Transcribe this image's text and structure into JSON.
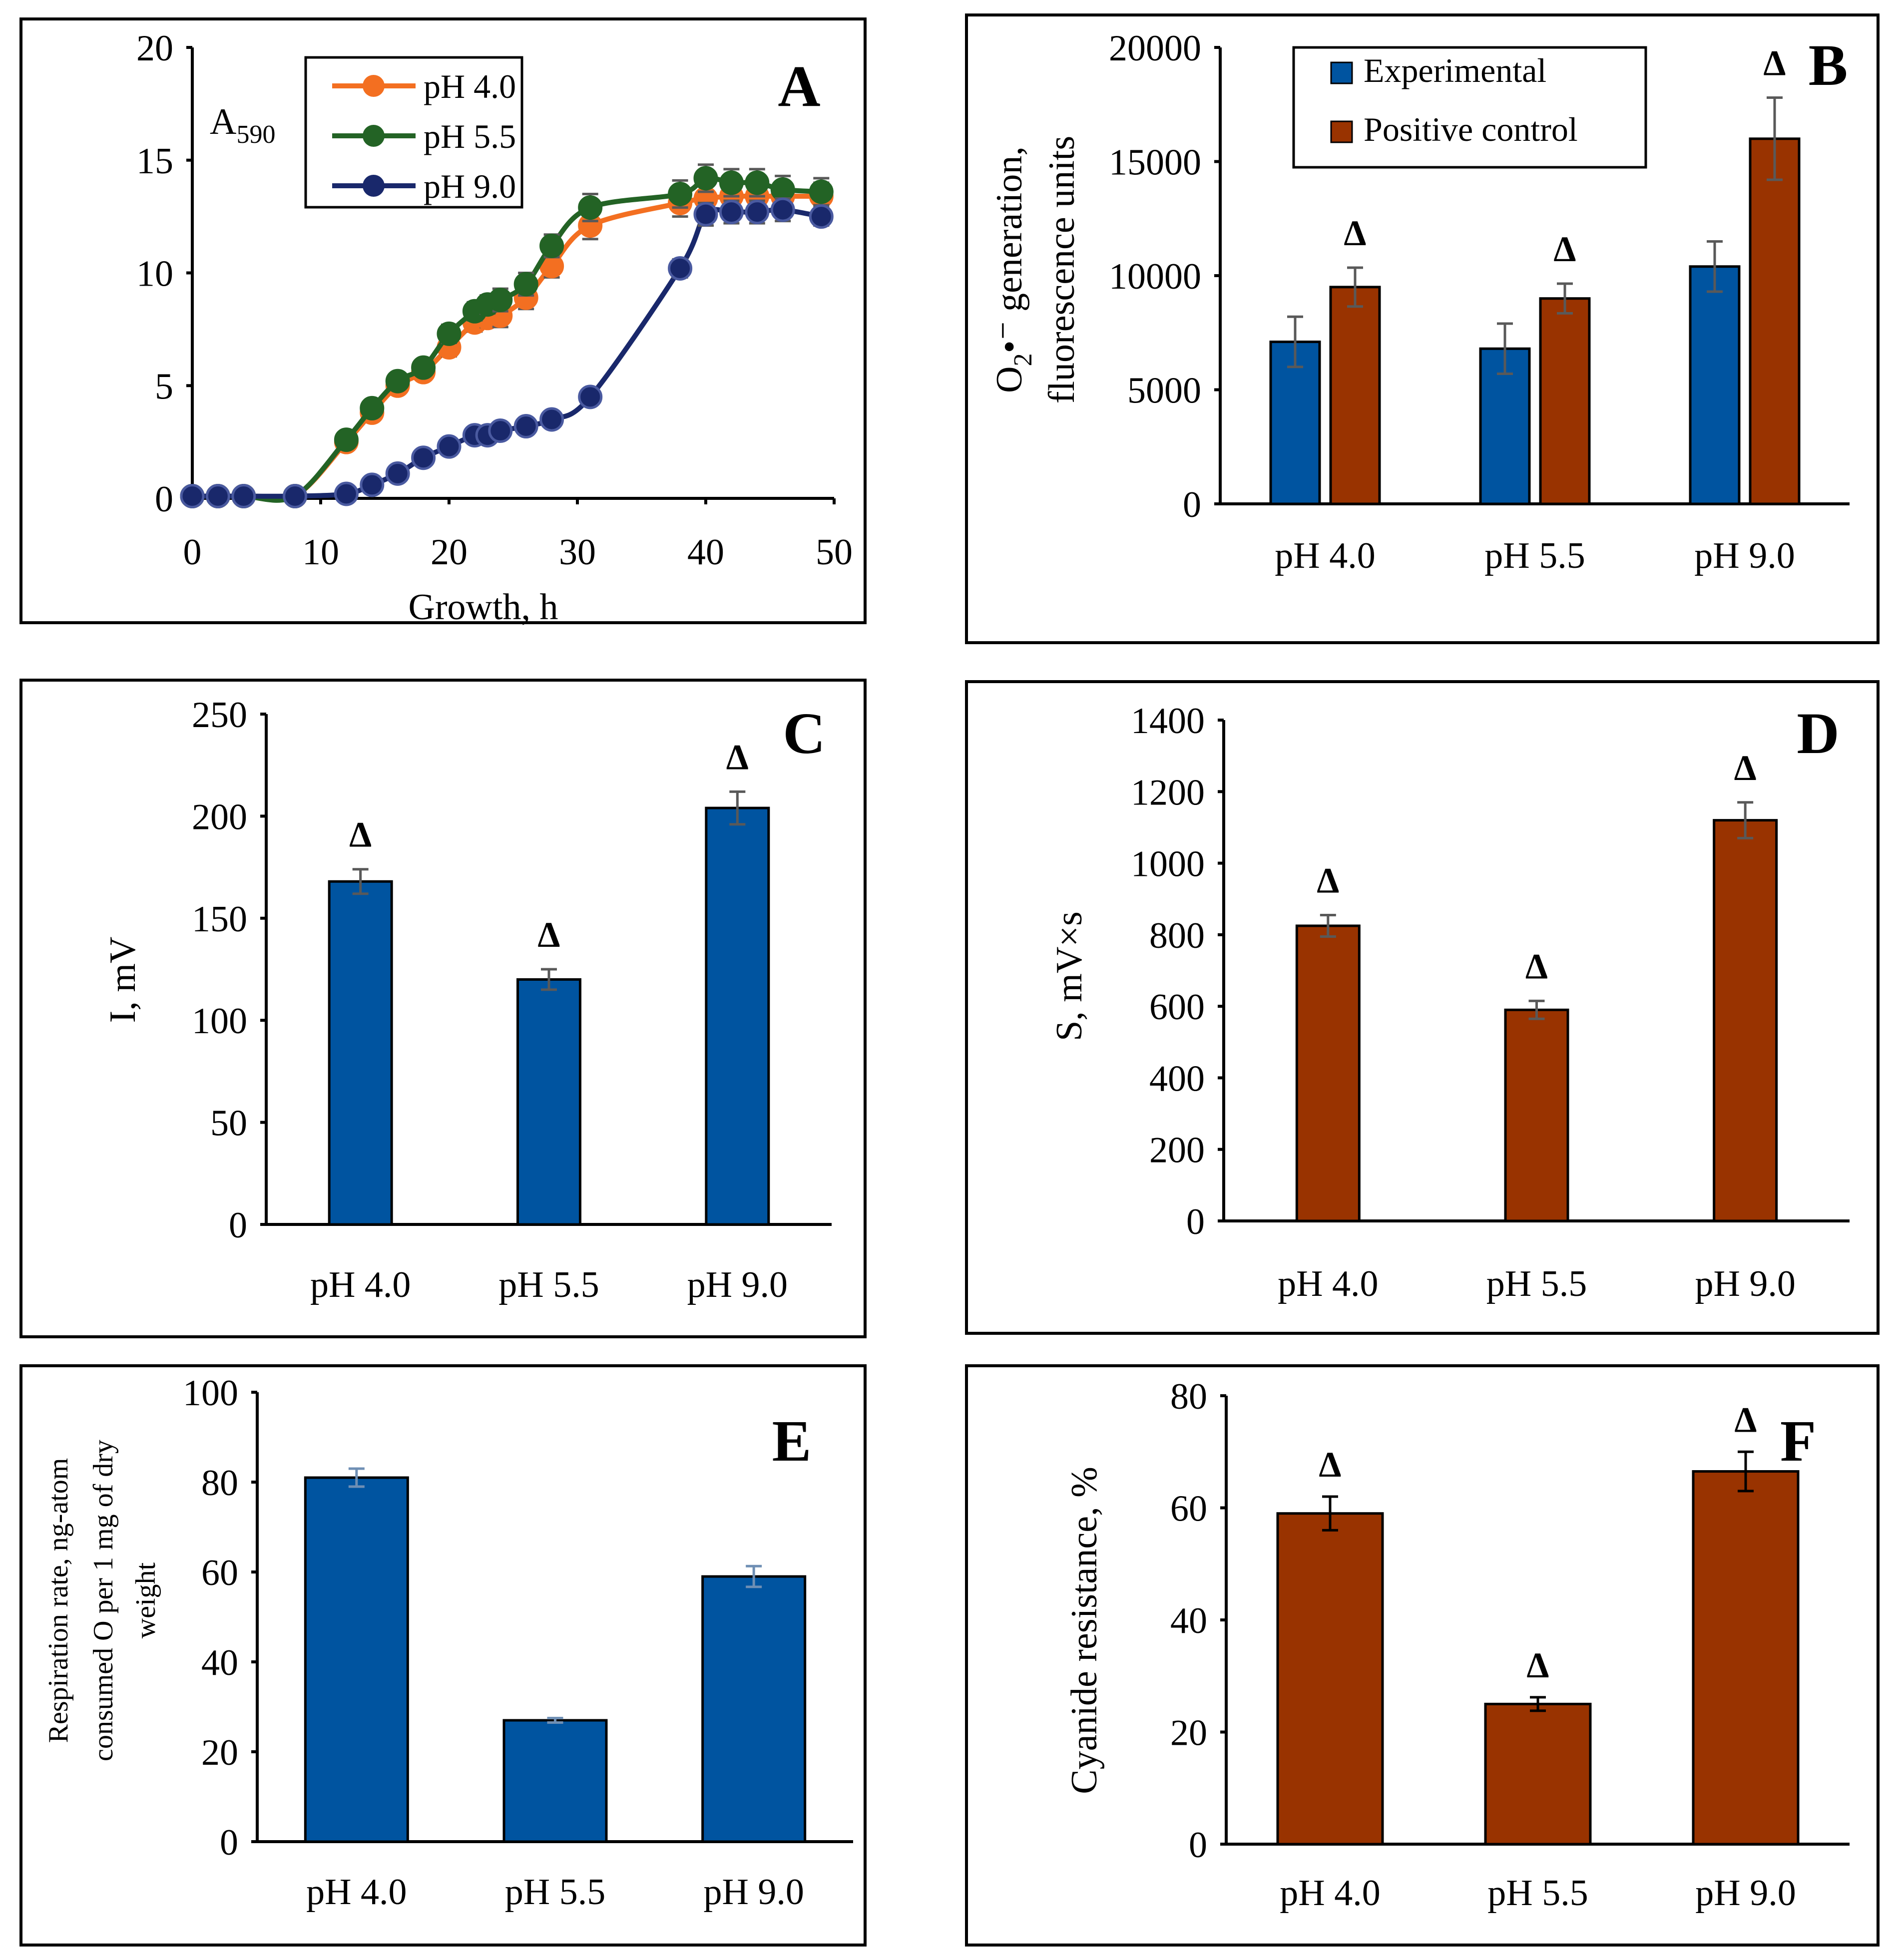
{
  "figure": {
    "colors": {
      "blue": "#0054A0",
      "brown": "#993300",
      "orange": "#F36F21",
      "green": "#236325",
      "navy": "#19286B",
      "err_gray": "#595959",
      "err_black": "#000000",
      "err_lightblue": "#6F8FB4"
    }
  },
  "chart_data": [
    {
      "panel": "A",
      "type": "line",
      "title": "",
      "xlabel": "Growth, h",
      "ylabel_base": "A",
      "ylabel_sub": "590",
      "xlim": [
        0,
        50
      ],
      "ylim": [
        0,
        20
      ],
      "xticks": [
        "0",
        "10",
        "20",
        "30",
        "40",
        "50"
      ],
      "yticks": [
        "0",
        "5",
        "10",
        "15",
        "20"
      ],
      "legend_position": "top-left",
      "series": [
        {
          "name": "pH 4.0",
          "color": "#F36F21",
          "x": [
            0,
            2,
            4,
            8,
            12,
            14,
            16,
            18,
            20,
            22,
            23,
            24,
            26,
            28,
            31,
            38,
            40,
            42,
            44,
            46,
            49
          ],
          "y": [
            0.1,
            0.1,
            0.1,
            0.1,
            2.5,
            3.8,
            5.0,
            5.6,
            6.7,
            7.8,
            8.0,
            8.1,
            8.9,
            10.3,
            12.1,
            13.1,
            13.3,
            13.4,
            13.4,
            13.4,
            13.4
          ],
          "err": [
            0,
            0,
            0,
            0,
            0.3,
            0.3,
            0.3,
            0.3,
            0.4,
            0.4,
            0.4,
            0.5,
            0.5,
            0.5,
            0.6,
            0.6,
            0.6,
            0.6,
            0.6,
            0.6,
            0.6
          ]
        },
        {
          "name": "pH 5.5",
          "color": "#236325",
          "x": [
            0,
            2,
            4,
            8,
            12,
            14,
            16,
            18,
            20,
            22,
            23,
            24,
            26,
            28,
            31,
            38,
            40,
            42,
            44,
            46,
            49
          ],
          "y": [
            0.1,
            0.1,
            0.1,
            0.1,
            2.6,
            4.0,
            5.2,
            5.8,
            7.3,
            8.3,
            8.6,
            8.8,
            9.5,
            11.2,
            12.9,
            13.5,
            14.2,
            14.0,
            14.0,
            13.7,
            13.6
          ],
          "err": [
            0,
            0,
            0,
            0,
            0.3,
            0.3,
            0.3,
            0.3,
            0.4,
            0.4,
            0.4,
            0.5,
            0.5,
            0.5,
            0.6,
            0.6,
            0.6,
            0.6,
            0.6,
            0.6,
            0.6
          ]
        },
        {
          "name": "pH 9.0",
          "color": "#19286B",
          "x": [
            0,
            2,
            4,
            8,
            12,
            14,
            16,
            18,
            20,
            22,
            23,
            24,
            26,
            28,
            31,
            38,
            40,
            42,
            44,
            46,
            49
          ],
          "y": [
            0.1,
            0.1,
            0.1,
            0.1,
            0.2,
            0.6,
            1.1,
            1.8,
            2.3,
            2.8,
            2.8,
            3.0,
            3.2,
            3.5,
            4.5,
            10.2,
            12.6,
            12.7,
            12.7,
            12.8,
            12.5
          ],
          "err": [
            0,
            0,
            0,
            0,
            0,
            0,
            0,
            0,
            0,
            0,
            0,
            0,
            0,
            0,
            0,
            0.4,
            0.5,
            0.5,
            0.5,
            0.5,
            0.4
          ]
        }
      ]
    },
    {
      "panel": "B",
      "type": "bar",
      "title": "",
      "ylabel_line1": "O",
      "ylabel_sub": "2",
      "ylabel_rest": "•⁻ generation,",
      "ylabel_line2": "fluorescence units",
      "categories": [
        "pH 4.0",
        "pH 5.5",
        "pH 9.0"
      ],
      "ylim": [
        0,
        20000
      ],
      "yticks": [
        "0",
        "5000",
        "10000",
        "15000",
        "20000"
      ],
      "legend_position": "top-center",
      "significance": [
        "Δ",
        "Δ",
        "Δ"
      ],
      "series": [
        {
          "name": "Experimental",
          "color": "#0054A0",
          "values": [
            7100,
            6800,
            10400
          ],
          "err": [
            1100,
            1100,
            1100
          ]
        },
        {
          "name": "Positive control",
          "color": "#993300",
          "values": [
            9500,
            9000,
            16000
          ],
          "err": [
            850,
            650,
            1800
          ]
        }
      ]
    },
    {
      "panel": "C",
      "type": "bar",
      "title": "",
      "ylabel": "I, mV",
      "categories": [
        "pH 4.0",
        "pH 5.5",
        "pH 9.0"
      ],
      "ylim": [
        0,
        250
      ],
      "yticks": [
        "0",
        "50",
        "100",
        "150",
        "200",
        "250"
      ],
      "significance": [
        "Δ",
        "Δ",
        "Δ"
      ],
      "series": [
        {
          "name": "",
          "color": "#0054A0",
          "values": [
            168,
            120,
            204
          ],
          "err": [
            6,
            5,
            8
          ]
        }
      ]
    },
    {
      "panel": "D",
      "type": "bar",
      "title": "",
      "ylabel": "S, mV×s",
      "categories": [
        "pH 4.0",
        "pH 5.5",
        "pH 9.0"
      ],
      "ylim": [
        0,
        1400
      ],
      "yticks": [
        "0",
        "200",
        "400",
        "600",
        "800",
        "1000",
        "1200",
        "1400"
      ],
      "significance": [
        "Δ",
        "Δ",
        "Δ"
      ],
      "series": [
        {
          "name": "",
          "color": "#993300",
          "values": [
            825,
            590,
            1120
          ],
          "err": [
            30,
            25,
            50
          ]
        }
      ]
    },
    {
      "panel": "E",
      "type": "bar",
      "title": "",
      "ylabel_lines": [
        "Respiration rate, ng-atom",
        "consumed O per 1 mg of dry",
        "weight"
      ],
      "categories": [
        "pH 4.0",
        "pH 5.5",
        "pH 9.0"
      ],
      "ylim": [
        0,
        100
      ],
      "yticks": [
        "0",
        "20",
        "40",
        "60",
        "80",
        "100"
      ],
      "significance": [
        "",
        "",
        ""
      ],
      "series": [
        {
          "name": "",
          "color": "#0054A0",
          "values": [
            81,
            27,
            59
          ],
          "err": [
            2,
            0.5,
            2.3
          ]
        }
      ]
    },
    {
      "panel": "F",
      "type": "bar",
      "title": "",
      "ylabel": "Cyanide resistance, %",
      "categories": [
        "pH 4.0",
        "pH 5.5",
        "pH 9.0"
      ],
      "ylim": [
        0,
        80
      ],
      "yticks": [
        "0",
        "20",
        "40",
        "60",
        "80"
      ],
      "significance": [
        "Δ",
        "Δ",
        "Δ"
      ],
      "series": [
        {
          "name": "",
          "color": "#993300",
          "values": [
            59,
            25,
            66.5
          ],
          "err": [
            3,
            1.2,
            3.5
          ]
        }
      ]
    }
  ]
}
